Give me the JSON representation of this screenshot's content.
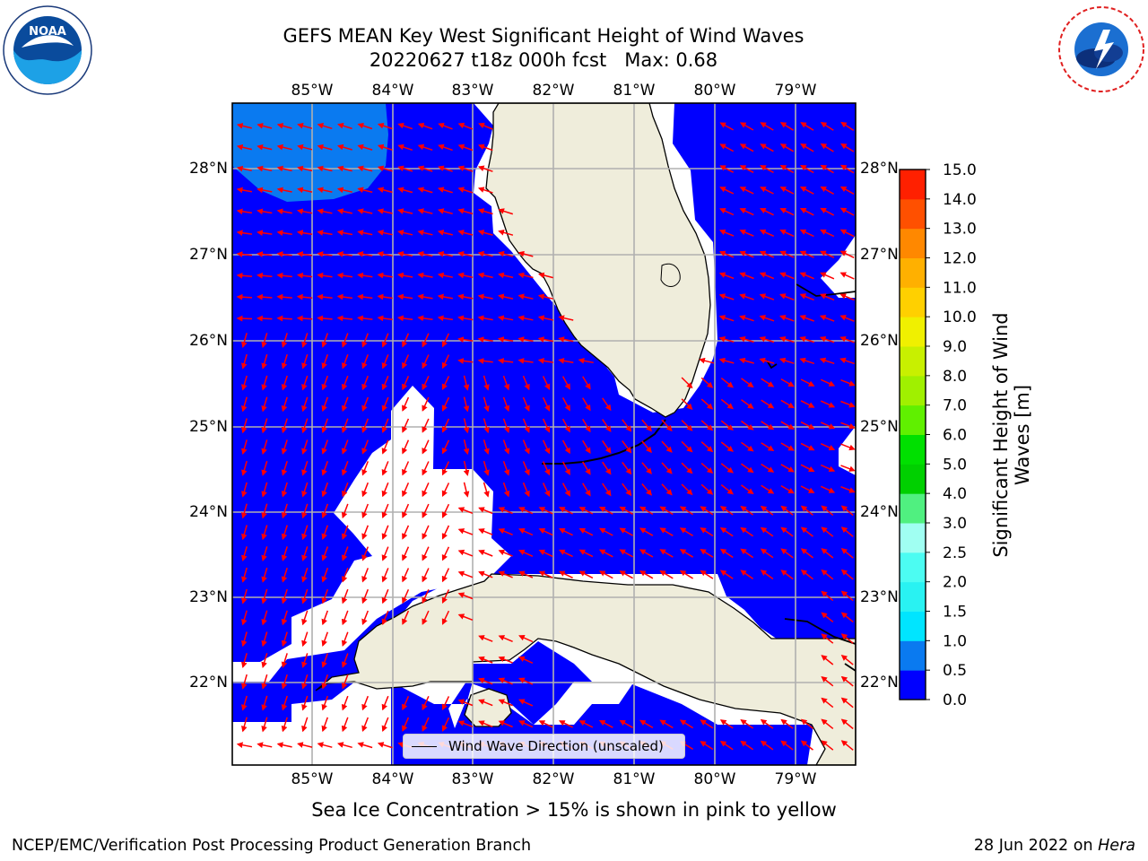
{
  "title": {
    "line1": "GEFS MEAN Key West Significant Height of Wind Waves",
    "line2": "20220627 t18z 000h fcst   Max: 0.68"
  },
  "map": {
    "lon_range": [
      -86.0,
      -78.25
    ],
    "lat_range": [
      21.1,
      28.75
    ],
    "lon_ticks": [
      "85°W",
      "84°W",
      "83°W",
      "82°W",
      "81°W",
      "80°W",
      "79°W"
    ],
    "lat_ticks": [
      "22°N",
      "23°N",
      "24°N",
      "25°N",
      "26°N",
      "27°N",
      "28°N"
    ],
    "wave_color_below_0_5": "#0000ff",
    "wave_color_0_5_to_1_0": "#0a7af0",
    "land_color": "#efeddb",
    "arrow_color": "#ff0000",
    "grid_color": "#b0b0b0"
  },
  "colorbar": {
    "label": "Significant Height of Wind Waves [m]",
    "levels": [
      "0.0",
      "0.5",
      "1.0",
      "1.5",
      "2.0",
      "2.5",
      "3.0",
      "4.0",
      "5.0",
      "6.0",
      "7.0",
      "8.0",
      "9.0",
      "10.0",
      "11.0",
      "12.0",
      "13.0",
      "14.0",
      "15.0"
    ],
    "colors": [
      "#0000ff",
      "#0a7af0",
      "#00e5ff",
      "#29f2f2",
      "#4cfcf2",
      "#a0fff2",
      "#50f080",
      "#00d000",
      "#00e000",
      "#60f000",
      "#a0f000",
      "#c8f000",
      "#f0f000",
      "#ffd000",
      "#ffb000",
      "#ff8800",
      "#ff5000",
      "#ff2000",
      "#ff0000"
    ]
  },
  "legend": {
    "label": "Wind Wave Direction (unscaled)"
  },
  "footnote": "Sea Ice Concentration > 15% is shown in pink to yellow",
  "credit": {
    "left": "NCEP/EMC/Verification Post Processing Product Generation Branch",
    "right_date": "28 Jun 2022 on",
    "right_host": "Hera"
  },
  "logos": {
    "left": "noaa-logo",
    "right": "nws-logo"
  }
}
